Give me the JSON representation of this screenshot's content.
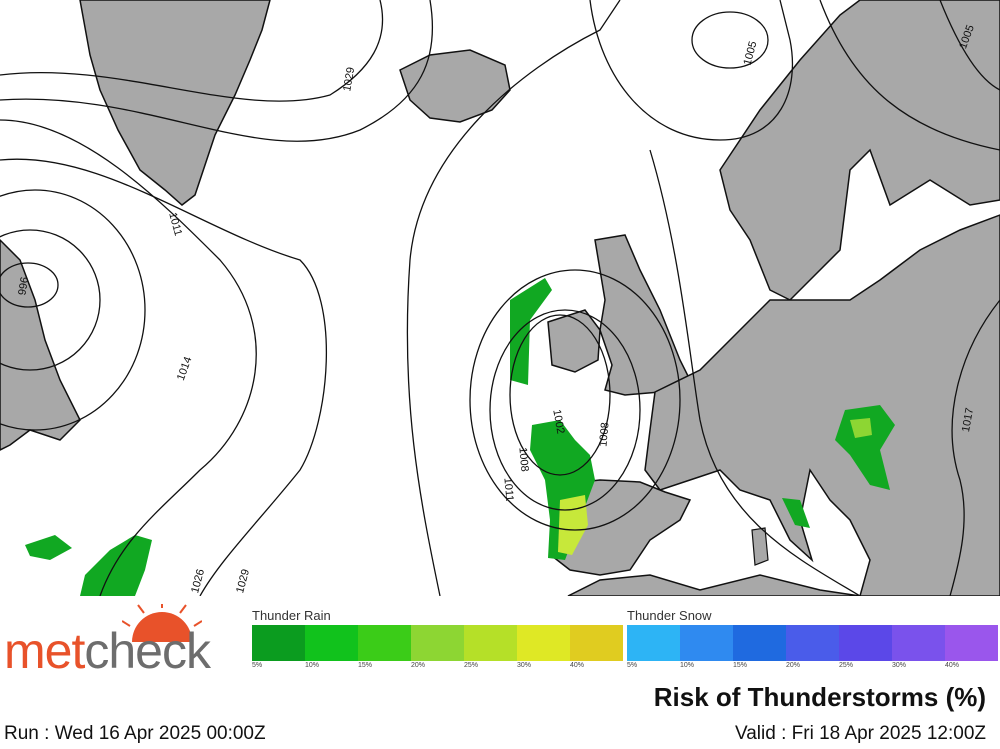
{
  "map": {
    "land_color": "#a8a8a8",
    "sea_color": "#ffffff",
    "isobar_labels": [
      "1029",
      "1005",
      "1005",
      "1011",
      "996",
      "1014",
      "1002",
      "1008",
      "1011",
      "1008",
      "1026",
      "1029",
      "1017"
    ]
  },
  "legend": {
    "thunder_rain": {
      "title": "Thunder Rain",
      "colors": [
        "#0b9c1f",
        "#11c21c",
        "#3bcc18",
        "#8dd633",
        "#b5e028",
        "#dfe825",
        "#e0cc20"
      ],
      "ticks": [
        "5%",
        "10%",
        "15%",
        "20%",
        "25%",
        "30%",
        "40%"
      ]
    },
    "thunder_snow": {
      "title": "Thunder Snow",
      "colors": [
        "#2db4f5",
        "#2f8af0",
        "#1f6ae0",
        "#4a5cea",
        "#5b48e8",
        "#7a52ec",
        "#9a56ec"
      ],
      "ticks": [
        "5%",
        "10%",
        "15%",
        "20%",
        "25%",
        "30%",
        "40%"
      ]
    }
  },
  "branding": {
    "logo_text_1": "met",
    "logo_text_2": "check"
  },
  "title": "Risk of Thunderstorms (%)",
  "run_text": "Run : Wed 16 Apr 2025 00:00Z",
  "valid_text": "Valid : Fri 18 Apr 2025 12:00Z"
}
